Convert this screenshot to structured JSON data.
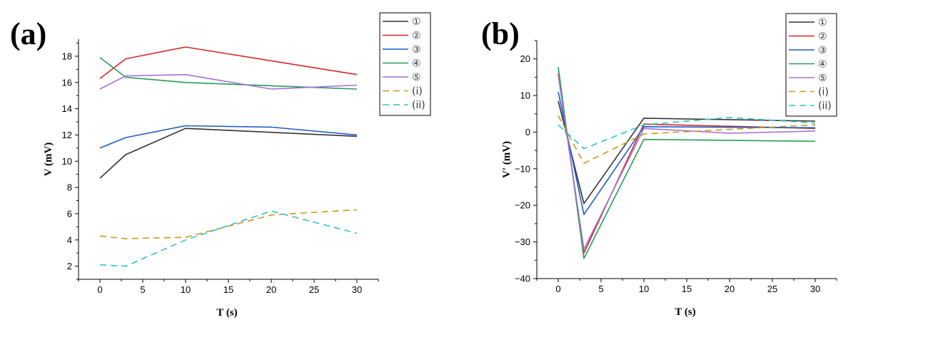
{
  "panels": [
    {
      "label": "(a)"
    },
    {
      "label": "(b)"
    }
  ],
  "colors": {
    "s1": "#333333",
    "s2": "#d62728",
    "s3": "#1f5fbf",
    "s4": "#2a9a5a",
    "s5": "#a66fd6",
    "si": "#c89a1a",
    "sii": "#2ec4c4"
  },
  "chart_data": [
    {
      "type": "line",
      "xlabel": "T  (s)",
      "ylabel": "V (mV)",
      "xlim": [
        -2.5,
        32.5
      ],
      "ylim": [
        1,
        19.3
      ],
      "xticks": [
        0,
        5,
        10,
        15,
        20,
        25,
        30
      ],
      "yticks": [
        2,
        4,
        6,
        8,
        10,
        12,
        14,
        16,
        18
      ],
      "legend_position": "top-right",
      "series": [
        {
          "name": "①",
          "color": "#333333",
          "dash": false,
          "x": [
            0,
            3,
            10,
            30
          ],
          "y": [
            8.7,
            10.5,
            12.5,
            11.9
          ]
        },
        {
          "name": "②",
          "color": "#d62728",
          "dash": false,
          "x": [
            0,
            3,
            10,
            30
          ],
          "y": [
            16.3,
            17.8,
            18.7,
            16.6
          ]
        },
        {
          "name": "③",
          "color": "#1f5fbf",
          "dash": false,
          "x": [
            0,
            3,
            10,
            20,
            30
          ],
          "y": [
            11.0,
            11.8,
            12.7,
            12.6,
            12.0
          ]
        },
        {
          "name": "④",
          "color": "#2a9a5a",
          "dash": false,
          "x": [
            0,
            3,
            10,
            30
          ],
          "y": [
            17.9,
            16.4,
            16.0,
            15.5
          ]
        },
        {
          "name": "⑤",
          "color": "#a66fd6",
          "dash": false,
          "x": [
            0,
            3,
            10,
            20,
            30
          ],
          "y": [
            15.5,
            16.5,
            16.6,
            15.5,
            15.8
          ]
        },
        {
          "name": "(i)",
          "color": "#c89a1a",
          "dash": true,
          "x": [
            0,
            3,
            10,
            20,
            30
          ],
          "y": [
            4.3,
            4.1,
            4.2,
            5.9,
            6.3
          ]
        },
        {
          "name": "(ii)",
          "color": "#2ec4c4",
          "dash": true,
          "x": [
            0,
            3,
            10,
            20,
            30
          ],
          "y": [
            2.1,
            2.0,
            4.0,
            6.2,
            4.5
          ]
        }
      ]
    },
    {
      "type": "line",
      "xlabel": "T  (s)",
      "ylabel": "V' (mV)",
      "xlim": [
        -2.5,
        32.5
      ],
      "ylim": [
        -40,
        25
      ],
      "xticks": [
        0,
        5,
        10,
        15,
        20,
        25,
        30
      ],
      "yticks": [
        -40,
        -30,
        -20,
        -10,
        0,
        10,
        20
      ],
      "legend_position": "top-right",
      "series": [
        {
          "name": "①",
          "color": "#333333",
          "dash": false,
          "x": [
            0,
            3,
            10,
            30
          ],
          "y": [
            8.5,
            -19.5,
            3.8,
            3.0
          ]
        },
        {
          "name": "②",
          "color": "#d62728",
          "dash": false,
          "x": [
            0,
            3,
            10,
            30
          ],
          "y": [
            16.0,
            -33.0,
            2.2,
            1.0
          ]
        },
        {
          "name": "③",
          "color": "#1f5fbf",
          "dash": false,
          "x": [
            0,
            3,
            10,
            30
          ],
          "y": [
            11.0,
            -22.5,
            1.5,
            1.2
          ]
        },
        {
          "name": "④",
          "color": "#2a9a5a",
          "dash": false,
          "x": [
            0,
            3,
            10,
            30
          ],
          "y": [
            17.8,
            -34.5,
            -2.0,
            -2.5
          ]
        },
        {
          "name": "⑤",
          "color": "#a66fd6",
          "dash": false,
          "x": [
            0,
            3,
            10,
            20,
            30
          ],
          "y": [
            15.5,
            -32.0,
            1.0,
            -0.3,
            0.3
          ]
        },
        {
          "name": "(i)",
          "color": "#c89a1a",
          "dash": true,
          "x": [
            0,
            3,
            10,
            30
          ],
          "y": [
            4.5,
            -8.5,
            -0.5,
            2.0
          ]
        },
        {
          "name": "(ii)",
          "color": "#2ec4c4",
          "dash": true,
          "x": [
            0,
            3,
            10,
            20,
            30
          ],
          "y": [
            2.0,
            -4.5,
            2.0,
            4.0,
            2.5
          ]
        }
      ]
    }
  ]
}
